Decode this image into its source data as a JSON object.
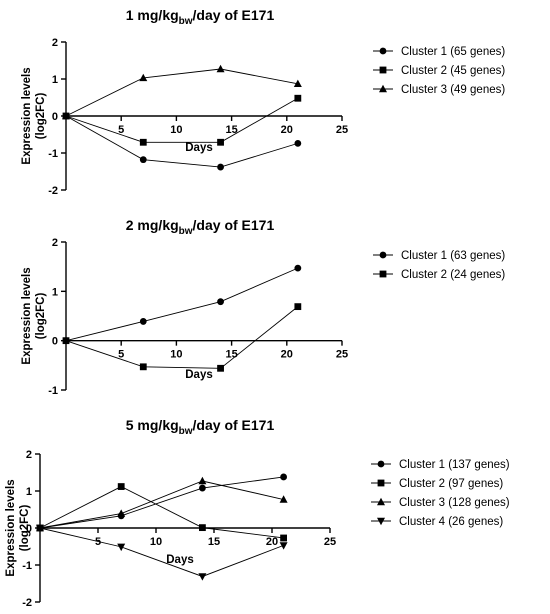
{
  "chart_data": [
    {
      "type": "line",
      "title": {
        "main": "1 mg/kg",
        "sub": "bw",
        "rest": "/day of E171"
      },
      "xlabel": "Days",
      "ylabel": [
        "Expression levels",
        "(log2FC)"
      ],
      "xlim": [
        0,
        25
      ],
      "ylim": [
        -2,
        2
      ],
      "xticks": [
        5,
        10,
        15,
        20,
        25
      ],
      "yticks": [
        -2,
        -1,
        0,
        1,
        2
      ],
      "x": [
        0,
        7,
        14,
        21
      ],
      "grid": false,
      "legend_position": "right",
      "series": [
        {
          "name": "Cluster  1 (65 genes)",
          "marker": "circle",
          "values": [
            0,
            -1.18,
            -1.38,
            -0.74
          ]
        },
        {
          "name": "Cluster 2 (45 genes)",
          "marker": "square",
          "values": [
            0,
            -0.71,
            -0.71,
            0.48
          ]
        },
        {
          "name": "Cluster 3 (49 genes)",
          "marker": "triangle-up",
          "values": [
            0,
            1.03,
            1.27,
            0.87
          ]
        }
      ]
    },
    {
      "type": "line",
      "title": {
        "main": "2 mg/kg",
        "sub": "bw",
        "rest": "/day of E171"
      },
      "xlabel": "Days",
      "ylabel": [
        "Expression levels",
        "(log2FC)"
      ],
      "xlim": [
        0,
        25
      ],
      "ylim": [
        -1,
        2
      ],
      "xticks": [
        5,
        10,
        15,
        20,
        25
      ],
      "yticks": [
        -1,
        0,
        1,
        2
      ],
      "x": [
        0,
        7,
        14,
        21
      ],
      "grid": false,
      "legend_position": "right",
      "series": [
        {
          "name": "Cluster 1 (63 genes)",
          "marker": "circle",
          "values": [
            0,
            0.39,
            0.79,
            1.47
          ]
        },
        {
          "name": "Cluster 2 (24 genes)",
          "marker": "square",
          "values": [
            0,
            -0.53,
            -0.56,
            0.69
          ]
        }
      ]
    },
    {
      "type": "line",
      "title": {
        "main": "5 mg/kg",
        "sub": "bw",
        "rest": "/day of E171"
      },
      "xlabel": "Days",
      "ylabel": [
        "Expression levels",
        "(log2FC)"
      ],
      "xlim": [
        0,
        25
      ],
      "ylim": [
        -2,
        2
      ],
      "xticks": [
        5,
        10,
        15,
        20,
        25
      ],
      "yticks": [
        -2,
        -1,
        0,
        1,
        2
      ],
      "x": [
        0,
        7,
        14,
        21
      ],
      "grid": false,
      "legend_position": "right",
      "series": [
        {
          "name": "Cluster  1 (137 genes)",
          "marker": "circle",
          "values": [
            0,
            0.33,
            1.08,
            1.38
          ]
        },
        {
          "name": "Cluster 2 (97 genes)",
          "marker": "square",
          "values": [
            0,
            1.12,
            0.01,
            -0.27
          ]
        },
        {
          "name": "Cluster 3 (128 genes)",
          "marker": "triangle-up",
          "values": [
            0,
            0.39,
            1.27,
            0.77
          ]
        },
        {
          "name": "Cluster 4 (26 genes)",
          "marker": "triangle-down",
          "values": [
            0,
            -0.51,
            -1.31,
            -0.47
          ]
        }
      ]
    }
  ]
}
